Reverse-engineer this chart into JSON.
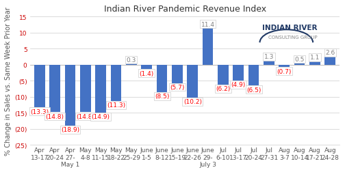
{
  "title": "Indian River Pandemic Revenue Index",
  "ylabel": "% Change in Sales vs. Same Week Prior Year",
  "categories": [
    "Apr\n13-17",
    "Apr\n20-24",
    "Apr\n27-\nMay 1",
    "May\n4-8",
    "May\n11-15",
    "May\n18-22",
    "May\n25-29",
    "June\n1-5",
    "June\n8-12",
    "June\n15-19",
    "June\n22-26",
    "June\n29-\nJuly 3",
    "Jul\n6-10",
    "Jul\n13-17",
    "Jul\n20-24",
    "Jul\n27-31",
    "Aug\n3-7",
    "Aug\n10-14",
    "Aug\n17-21",
    "Aug\n24-28"
  ],
  "values": [
    -13.3,
    -14.8,
    -18.9,
    -14.8,
    -14.9,
    -11.3,
    0.3,
    -1.4,
    -8.5,
    -5.7,
    -10.2,
    11.4,
    -6.2,
    -4.9,
    -6.5,
    1.3,
    -0.7,
    0.5,
    1.1,
    2.6
  ],
  "bar_color_pos": "#4472C4",
  "bar_color_neg": "#4472C4",
  "label_color_pos": "#808080",
  "label_color_neg": "#FF0000",
  "ylim": [
    -25,
    15
  ],
  "yticks": [
    -25,
    -20,
    -15,
    -10,
    -5,
    0,
    5,
    10,
    15
  ],
  "ytick_labels": [
    "(25)",
    "(20)",
    "(15)",
    "(10)",
    "(5)",
    "0",
    "5",
    "10",
    "15"
  ],
  "bg_color": "#FFFFFF",
  "grid_color": "#CCCCCC",
  "title_fontsize": 9,
  "label_fontsize": 6.5,
  "tick_fontsize": 6.5,
  "ylabel_fontsize": 7
}
